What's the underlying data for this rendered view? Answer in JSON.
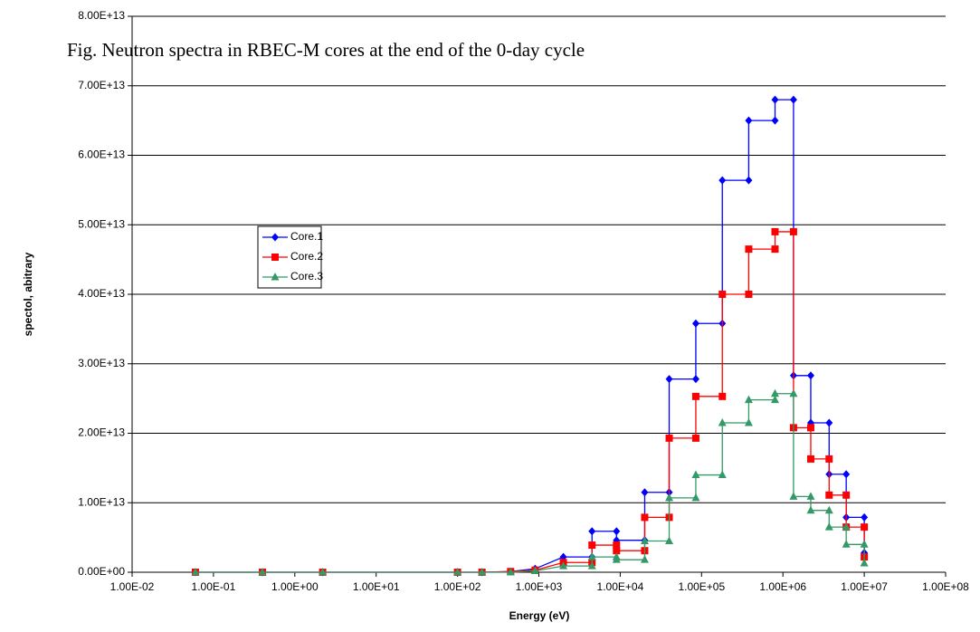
{
  "chart_data": {
    "type": "line",
    "title": "Fig. Neutron spectra in RBEC-M cores at the end of the 0-day cycle",
    "xlabel": "Energy (eV)",
    "ylabel": "spectol, abitrary",
    "xscale": "log",
    "grid": true,
    "legend": "left",
    "xlim": [
      0.01,
      100000000
    ],
    "ylim": [
      0,
      80000000000000.0
    ],
    "xticks": [
      {
        "value": 0.01,
        "label": "1.00E-02"
      },
      {
        "value": 0.1,
        "label": "1.00E-01"
      },
      {
        "value": 1,
        "label": "1.00E+00"
      },
      {
        "value": 10,
        "label": "1.00E+01"
      },
      {
        "value": 100,
        "label": "1.00E+02"
      },
      {
        "value": 1000,
        "label": "1.00E+03"
      },
      {
        "value": 10000,
        "label": "1.00E+04"
      },
      {
        "value": 100000,
        "label": "1.00E+05"
      },
      {
        "value": 1000000,
        "label": "1.00E+06"
      },
      {
        "value": 10000000,
        "label": "1.00E+07"
      },
      {
        "value": 100000000,
        "label": "1.00E+08"
      }
    ],
    "yticks": [
      {
        "value": 0,
        "label": "0.00E+00"
      },
      {
        "value": 10000000000000.0,
        "label": "1.00E+13"
      },
      {
        "value": 20000000000000.0,
        "label": "2.00E+13"
      },
      {
        "value": 30000000000000.0,
        "label": "3.00E+13"
      },
      {
        "value": 40000000000000.0,
        "label": "4.00E+13"
      },
      {
        "value": 50000000000000.0,
        "label": "5.00E+13"
      },
      {
        "value": 60000000000000.0,
        "label": "6.00E+13"
      },
      {
        "value": 70000000000000.0,
        "label": "7.00E+13"
      },
      {
        "value": 80000000000000.0,
        "label": "8.00E+13"
      }
    ],
    "x": [
      0.06,
      0.4,
      2.2,
      100,
      200,
      450,
      900,
      2000,
      4500,
      4500,
      9000,
      9000,
      20000,
      20000,
      40000,
      40000,
      85000,
      85000,
      180000,
      180000,
      380000,
      380000,
      800000,
      800000,
      1350000,
      1350000,
      2200000,
      2200000,
      3700000,
      3700000,
      6000000,
      6000000,
      10000000,
      10000000
    ],
    "series": [
      {
        "name": "Core.1",
        "color": "#0000ff",
        "marker": "diamond",
        "values": [
          0,
          0,
          0,
          0,
          0,
          100000000000.0,
          500000000000.0,
          2200000000000.0,
          2200000000000.0,
          5900000000000.0,
          5900000000000.0,
          4600000000000.0,
          4600000000000.0,
          11500000000000.0,
          11500000000000.0,
          27800000000000.0,
          27800000000000.0,
          35800000000000.0,
          35800000000000.0,
          56400000000000.0,
          56400000000000.0,
          65000000000000.0,
          65000000000000.0,
          68000000000000.0,
          68000000000000.0,
          28300000000000.0,
          28300000000000.0,
          21500000000000.0,
          21500000000000.0,
          14100000000000.0,
          14100000000000.0,
          7900000000000.0,
          7900000000000.0,
          2800000000000.0
        ]
      },
      {
        "name": "Core.2",
        "color": "#ff0000",
        "marker": "square",
        "values": [
          0,
          0,
          0,
          0,
          0,
          100000000000.0,
          300000000000.0,
          1400000000000.0,
          1400000000000.0,
          3900000000000.0,
          3900000000000.0,
          3100000000000.0,
          3100000000000.0,
          7900000000000.0,
          7900000000000.0,
          19300000000000.0,
          19300000000000.0,
          25300000000000.0,
          25300000000000.0,
          40000000000000.0,
          40000000000000.0,
          46500000000000.0,
          46500000000000.0,
          49000000000000.0,
          49000000000000.0,
          20800000000000.0,
          20800000000000.0,
          16300000000000.0,
          16300000000000.0,
          11100000000000.0,
          11100000000000.0,
          6500000000000.0,
          6500000000000.0,
          2200000000000.0
        ]
      },
      {
        "name": "Core.3",
        "color": "#339966",
        "marker": "triangle",
        "values": [
          0,
          0,
          0,
          0,
          0,
          0,
          200000000000.0,
          900000000000.0,
          900000000000.0,
          2200000000000.0,
          2200000000000.0,
          1800000000000.0,
          1800000000000.0,
          4500000000000.0,
          4500000000000.0,
          10700000000000.0,
          10700000000000.0,
          14000000000000.0,
          14000000000000.0,
          21500000000000.0,
          21500000000000.0,
          24800000000000.0,
          24800000000000.0,
          25700000000000.0,
          25700000000000.0,
          10900000000000.0,
          10900000000000.0,
          8900000000000.0,
          8900000000000.0,
          6500000000000.0,
          6500000000000.0,
          4000000000000.0,
          4000000000000.0,
          1300000000000.0
        ]
      }
    ]
  }
}
